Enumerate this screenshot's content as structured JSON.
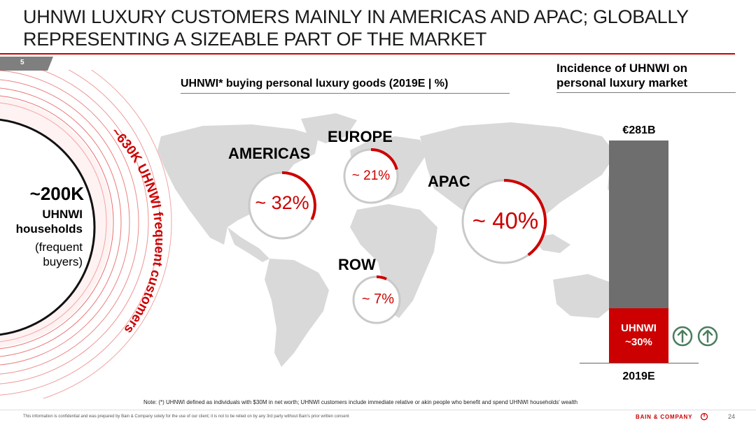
{
  "slide": {
    "title": "UHNWI LUXURY CUSTOMERS MAINLY IN AMERICAS AND APAC; GLOBALLY REPRESENTING A SIZEABLE PART OF THE MARKET",
    "section_number": "5",
    "page_number": "24"
  },
  "left_panel": {
    "households_value": "~200K",
    "households_label_line1": "UHNWI",
    "households_label_line2": "households",
    "households_sub_line1": "(frequent",
    "households_sub_line2": "buyers)",
    "customers_arc_text": "~630K UHNWI frequent customers"
  },
  "map_section": {
    "header": "UHNWI* buying personal luxury goods (2019E | %)",
    "regions": [
      {
        "name": "AMERICAS",
        "share_label": "~ 32%",
        "share": 0.32
      },
      {
        "name": "EUROPE",
        "share_label": "~ 21%",
        "share": 0.21
      },
      {
        "name": "APAC",
        "share_label": "~ 40%",
        "share": 0.4
      },
      {
        "name": "ROW",
        "share_label": "~ 7%",
        "share": 0.07
      }
    ]
  },
  "side_chart": {
    "header": "Incidence of UHNWI on personal luxury market",
    "total_label": "€281B",
    "uhnwi_label_line1": "UHNWI",
    "uhnwi_label_line2": "~30%",
    "uhnwi_share": 0.3,
    "year": "2019E",
    "trend_icons": [
      "up-arrow-circle-icon",
      "up-arrow-circle-icon"
    ]
  },
  "note": "Note: (*) UHNWI defined as individuals with $30M in net worth; UHNWI customers include immediate relative or akin people who benefit and spend UHNWI households' wealth",
  "footer": {
    "disclaimer": "This information is confidential and was prepared by Bain & Company solely for the use of our client; it is not to be relied on by any 3rd party without Bain's prior written consent",
    "brand": "BAIN & COMPANY"
  },
  "colors": {
    "accent": "#cc0000",
    "bar_grey": "#6e6e6e",
    "map": "#d9d9d9",
    "arrow_green": "#4a7d5e"
  }
}
